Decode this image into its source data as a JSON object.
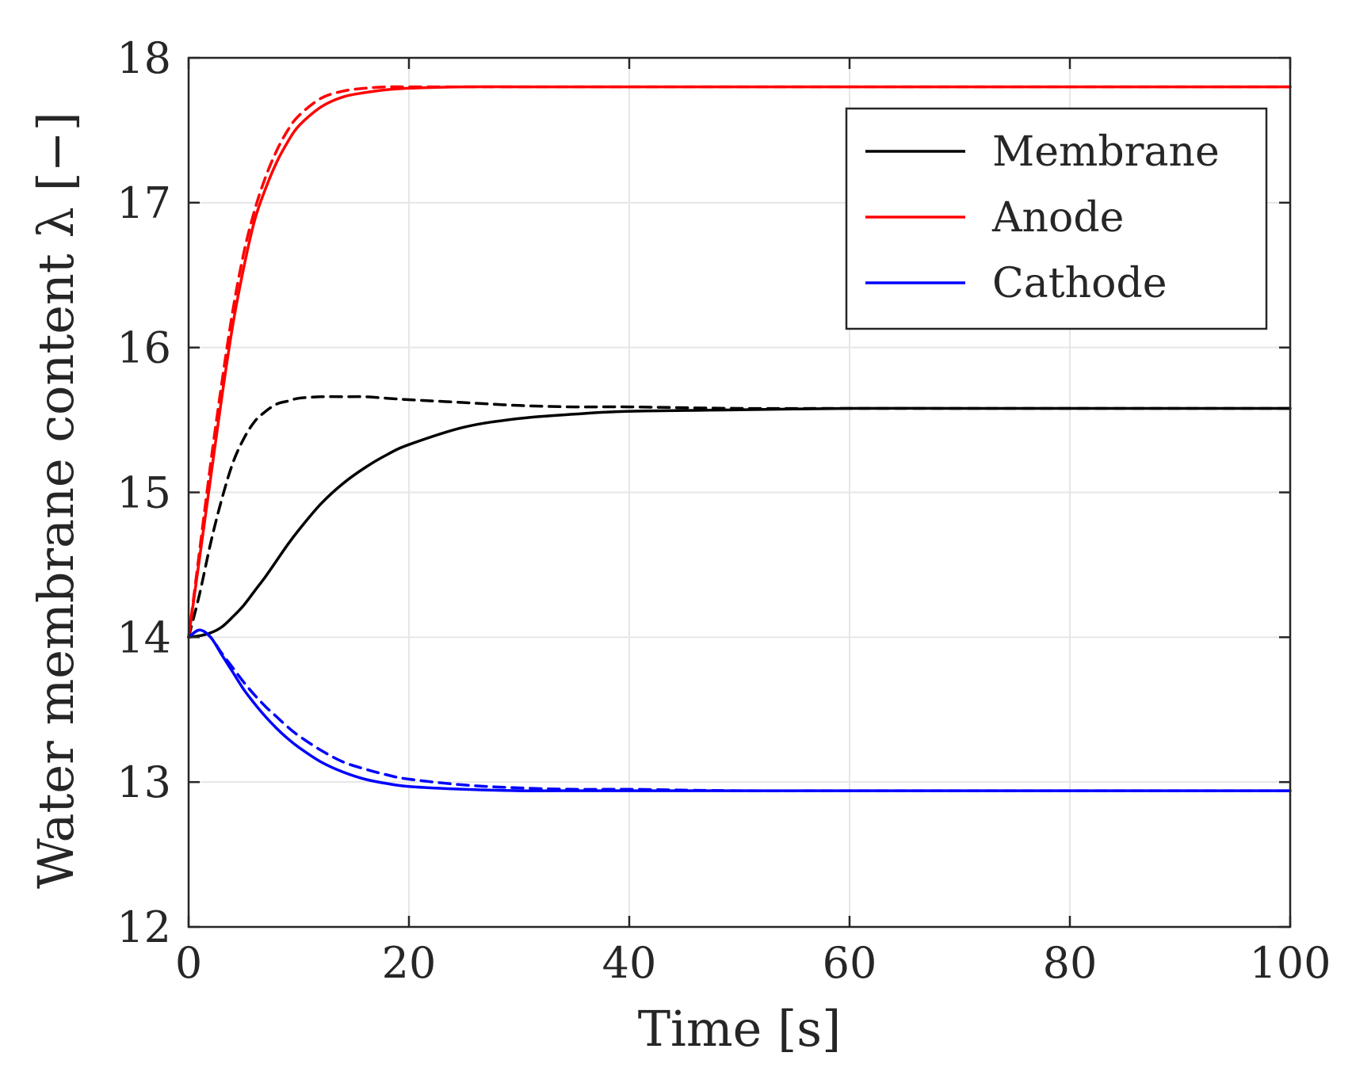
{
  "chart_data": {
    "type": "line",
    "title": "",
    "xlabel": "Time [s]",
    "ylabel": "Water membrane content λ [−]",
    "xlim": [
      0,
      100
    ],
    "ylim": [
      12,
      18
    ],
    "xticks": [
      0,
      20,
      40,
      60,
      80,
      100
    ],
    "yticks": [
      12,
      13,
      14,
      15,
      16,
      17,
      18
    ],
    "grid": true,
    "legend_position": "top-right",
    "legend": [
      {
        "label": "Membrane",
        "color": "#000000"
      },
      {
        "label": "Anode",
        "color": "#ff0000"
      },
      {
        "label": "Cathode",
        "color": "#0000ff"
      }
    ],
    "x": [
      0,
      1,
      2,
      3,
      4,
      5,
      6,
      7,
      8,
      9,
      10,
      12,
      14,
      16,
      18,
      20,
      25,
      30,
      35,
      40,
      50,
      60,
      70,
      80,
      90,
      100
    ],
    "series": [
      {
        "name": "Membrane",
        "style": "solid",
        "color": "#000000",
        "values": [
          14.0,
          14.01,
          14.03,
          14.07,
          14.14,
          14.22,
          14.32,
          14.42,
          14.53,
          14.64,
          14.74,
          14.92,
          15.06,
          15.17,
          15.26,
          15.33,
          15.45,
          15.51,
          15.54,
          15.56,
          15.57,
          15.58,
          15.58,
          15.58,
          15.58,
          15.58
        ]
      },
      {
        "name": "Membrane",
        "style": "dashed",
        "color": "#000000",
        "values": [
          14.0,
          14.3,
          14.65,
          14.95,
          15.2,
          15.37,
          15.49,
          15.56,
          15.61,
          15.63,
          15.65,
          15.66,
          15.66,
          15.66,
          15.65,
          15.64,
          15.62,
          15.6,
          15.59,
          15.59,
          15.58,
          15.58,
          15.58,
          15.58,
          15.58,
          15.58
        ]
      },
      {
        "name": "Anode",
        "style": "solid",
        "color": "#ff0000",
        "values": [
          14.0,
          14.55,
          15.1,
          15.65,
          16.15,
          16.55,
          16.88,
          17.1,
          17.28,
          17.42,
          17.53,
          17.66,
          17.73,
          17.76,
          17.78,
          17.79,
          17.8,
          17.8,
          17.8,
          17.8,
          17.8,
          17.8,
          17.8,
          17.8,
          17.8,
          17.8
        ]
      },
      {
        "name": "Anode",
        "style": "dashed",
        "color": "#ff0000",
        "values": [
          14.0,
          14.6,
          15.2,
          15.75,
          16.25,
          16.65,
          16.95,
          17.18,
          17.36,
          17.5,
          17.6,
          17.72,
          17.77,
          17.79,
          17.8,
          17.8,
          17.8,
          17.8,
          17.8,
          17.8,
          17.8,
          17.8,
          17.8,
          17.8,
          17.8,
          17.8
        ]
      },
      {
        "name": "Cathode",
        "style": "solid",
        "color": "#0000ff",
        "values": [
          14.0,
          14.05,
          14.0,
          13.88,
          13.76,
          13.64,
          13.54,
          13.45,
          13.37,
          13.3,
          13.24,
          13.14,
          13.07,
          13.02,
          12.99,
          12.97,
          12.95,
          12.94,
          12.94,
          12.94,
          12.94,
          12.94,
          12.94,
          12.94,
          12.94,
          12.94
        ]
      },
      {
        "name": "Cathode",
        "style": "dashed",
        "color": "#0000ff",
        "values": [
          14.0,
          14.05,
          14.0,
          13.89,
          13.79,
          13.69,
          13.6,
          13.52,
          13.45,
          13.38,
          13.32,
          13.22,
          13.14,
          13.09,
          13.05,
          13.02,
          12.98,
          12.96,
          12.95,
          12.95,
          12.94,
          12.94,
          12.94,
          12.94,
          12.94,
          12.94
        ]
      }
    ]
  }
}
